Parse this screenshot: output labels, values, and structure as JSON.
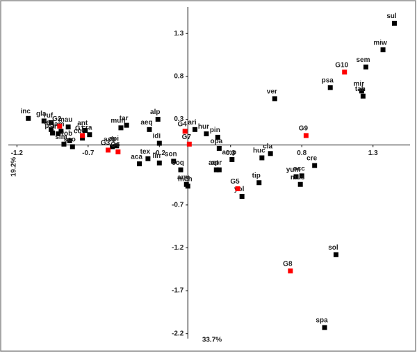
{
  "chart_data": {
    "type": "scatter",
    "x_label": "33.7%",
    "y_label": "19.2%",
    "xlim": [
      -1.27,
      1.56
    ],
    "ylim": [
      -2.34,
      1.61
    ],
    "xticks": [
      -1.2,
      -0.7,
      -0.2,
      0.3,
      0.8,
      1.3
    ],
    "yticks": [
      1.3,
      0.8,
      0.3,
      -0.7,
      -1.2,
      -1.7,
      -2.2
    ],
    "series": [
      {
        "color": "#000000",
        "labels": [
          "sul",
          "miw",
          "sem",
          "psa",
          "mir",
          "tah",
          "ver",
          "inc",
          "gla",
          "ruf",
          "mau",
          "lam",
          "ter",
          "psi",
          "iri",
          "rob",
          "sim",
          "sco",
          "coc",
          "cra",
          "ant",
          "ash",
          "api",
          "mun",
          "tar",
          "alp",
          "aeq",
          "idi",
          "tex",
          "aca",
          "lin",
          "son",
          "coq",
          "arm",
          "men",
          "ari",
          "hur",
          "pin",
          "opa",
          "aet",
          "apr",
          "amp",
          "huc",
          "cla",
          "tip",
          "cre",
          "yum",
          "occ",
          "mus",
          "yol",
          "sol",
          "spa"
        ],
        "x": [
          1.45,
          1.37,
          1.25,
          1.0,
          1.22,
          1.23,
          0.61,
          -1.12,
          -1.01,
          -0.96,
          -0.84,
          -0.89,
          -0.96,
          -0.95,
          -0.91,
          -0.83,
          -0.87,
          -0.81,
          -0.74,
          -0.69,
          -0.72,
          -0.53,
          -0.5,
          -0.47,
          -0.43,
          -0.21,
          -0.27,
          -0.2,
          -0.28,
          -0.34,
          -0.2,
          -0.1,
          -0.05,
          -0.01,
          0.0,
          0.05,
          0.13,
          0.21,
          0.22,
          0.2,
          0.22,
          0.31,
          0.52,
          0.58,
          0.5,
          0.89,
          0.76,
          0.8,
          0.79,
          0.38,
          1.04,
          0.96
        ],
        "y": [
          1.42,
          1.11,
          0.91,
          0.67,
          0.63,
          0.57,
          0.54,
          0.31,
          0.28,
          0.26,
          0.21,
          0.16,
          0.18,
          0.14,
          0.13,
          0.05,
          0.01,
          -0.02,
          0.08,
          0.12,
          0.17,
          -0.02,
          -0.01,
          0.2,
          0.23,
          0.3,
          0.18,
          0.02,
          -0.16,
          -0.22,
          -0.21,
          -0.19,
          -0.29,
          -0.46,
          -0.48,
          0.18,
          0.13,
          0.09,
          -0.04,
          -0.29,
          -0.29,
          -0.17,
          -0.15,
          -0.1,
          -0.44,
          -0.24,
          -0.37,
          -0.36,
          -0.46,
          -0.6,
          -1.28,
          -2.13
        ]
      },
      {
        "color": "#ff0000",
        "labels": [
          "G1",
          "G2",
          "G3",
          "G4",
          "G5",
          "G6",
          "G7",
          "G8",
          "G9",
          "G10"
        ],
        "x": [
          -0.74,
          -0.9,
          -0.56,
          -0.02,
          0.35,
          -0.49,
          0.01,
          0.72,
          0.83,
          1.1
        ],
        "y": [
          0.11,
          0.22,
          -0.06,
          0.16,
          -0.51,
          -0.08,
          0.01,
          -1.47,
          0.11,
          0.85
        ]
      }
    ]
  }
}
